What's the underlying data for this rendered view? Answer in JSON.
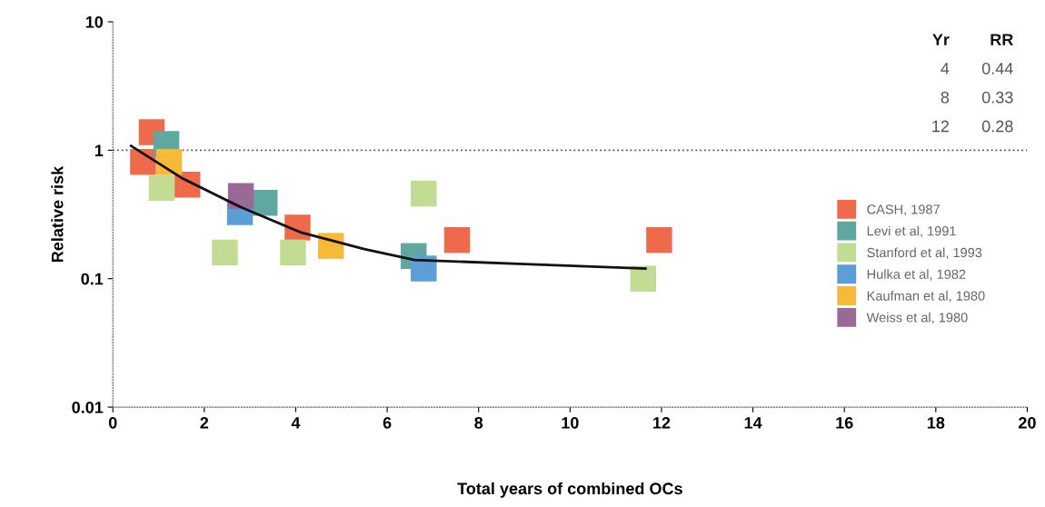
{
  "chart_data": {
    "type": "scatter",
    "xlabel": "Total years of combined OCs",
    "ylabel": "Relative risk",
    "xlim": [
      0,
      20
    ],
    "xticks": [
      0,
      2,
      4,
      6,
      8,
      10,
      12,
      14,
      16,
      18,
      20
    ],
    "ylim": [
      0.01,
      10
    ],
    "yticks": [
      0.01,
      0.1,
      1,
      10
    ],
    "log": "y",
    "grid": false,
    "legend": "right",
    "marker": "square",
    "ref_lines": [
      {
        "axis": "y",
        "value": 1,
        "line_style": "dotted",
        "color": "#555555"
      }
    ],
    "annotations": [
      "Yr",
      "RR",
      "4",
      "0.44",
      "8",
      "0.33",
      "12",
      "0.28"
    ],
    "series": [
      {
        "name": "CASH, 1987",
        "color": "#ef6a4a",
        "x": [
          0.85,
          0.66,
          1.63,
          4.04,
          7.53,
          11.95
        ],
        "values": [
          1.38,
          0.81,
          0.54,
          0.25,
          0.2,
          0.2
        ]
      },
      {
        "name": "Levi et al, 1991",
        "color": "#5fa8a0",
        "x": [
          1.17,
          3.32,
          6.58
        ],
        "values": [
          1.12,
          0.39,
          0.15
        ]
      },
      {
        "name": "Stanford et al, 1993",
        "color": "#c3dc94",
        "x": [
          1.07,
          2.45,
          3.94,
          6.8,
          11.6
        ],
        "values": [
          0.51,
          0.16,
          0.16,
          0.46,
          0.1
        ]
      },
      {
        "name": "Hulka et al, 1982",
        "color": "#5b9fd6",
        "x": [
          2.78,
          6.8
        ],
        "values": [
          0.33,
          0.12
        ]
      },
      {
        "name": "Kaufman et al, 1980",
        "color": "#f7b93a",
        "x": [
          1.23,
          4.77
        ],
        "values": [
          0.81,
          0.18
        ]
      },
      {
        "name": "Weiss et al, 1980",
        "color": "#9a6a96",
        "x": [
          2.8
        ],
        "values": [
          0.44
        ]
      },
      {
        "type": "line",
        "color": "#111111",
        "marker": "none",
        "x": [
          0.4,
          1.5,
          2.8,
          4.1,
          5.5,
          6.6,
          9,
          11.65
        ],
        "values": [
          1.08,
          0.61,
          0.36,
          0.23,
          0.17,
          0.14,
          0.13,
          0.12
        ]
      }
    ]
  }
}
